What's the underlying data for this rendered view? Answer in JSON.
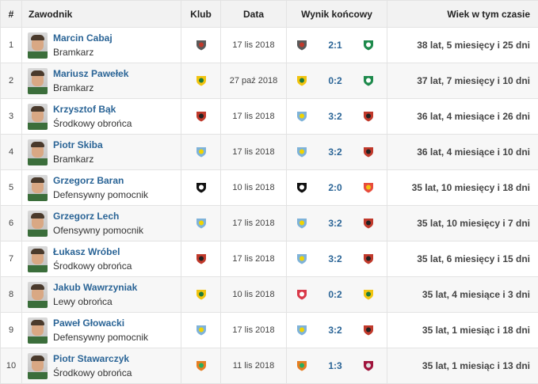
{
  "headers": {
    "num": "#",
    "player": "Zawodnik",
    "club": "Klub",
    "date": "Data",
    "result": "Wynik końcowy",
    "age": "Wiek w tym czasie"
  },
  "rows": [
    {
      "num": "1",
      "name": "Marcin Cabaj",
      "position": "Bramkarz",
      "club": "crest-triangle",
      "date": "17 lis 2018",
      "home": "crest-triangle",
      "score": "2:1",
      "away": "crest-green-circle",
      "age": "38 lat, 5 miesięcy i 25 dni"
    },
    {
      "num": "2",
      "name": "Mariusz Pawełek",
      "position": "Bramkarz",
      "club": "crest-yellow-green",
      "date": "27 paź 2018",
      "home": "crest-yellow-green",
      "score": "0:2",
      "away": "crest-green-circle",
      "age": "37 lat, 7 miesięcy i 10 dni"
    },
    {
      "num": "3",
      "name": "Krzysztof Bąk",
      "position": "Środkowy obrońca",
      "club": "crest-red-circle",
      "date": "17 lis 2018",
      "home": "crest-blue-striped",
      "score": "3:2",
      "away": "crest-red-circle",
      "age": "36 lat, 4 miesiące i 26 dni"
    },
    {
      "num": "4",
      "name": "Piotr Skiba",
      "position": "Bramkarz",
      "club": "crest-blue-striped",
      "date": "17 lis 2018",
      "home": "crest-blue-striped",
      "score": "3:2",
      "away": "crest-red-circle",
      "age": "36 lat, 4 miesiące i 10 dni"
    },
    {
      "num": "5",
      "name": "Grzegorz Baran",
      "position": "Defensywny pomocnik",
      "club": "crest-black-white",
      "date": "10 lis 2018",
      "home": "crest-black-white",
      "score": "2:0",
      "away": "crest-red-yellow",
      "age": "35 lat, 10 miesięcy i 18 dni"
    },
    {
      "num": "6",
      "name": "Grzegorz Lech",
      "position": "Ofensywny pomocnik",
      "club": "crest-blue-striped",
      "date": "17 lis 2018",
      "home": "crest-blue-striped",
      "score": "3:2",
      "away": "crest-red-circle",
      "age": "35 lat, 10 miesięcy i 7 dni"
    },
    {
      "num": "7",
      "name": "Łukasz Wróbel",
      "position": "Środkowy obrońca",
      "club": "crest-red-circle",
      "date": "17 lis 2018",
      "home": "crest-blue-striped",
      "score": "3:2",
      "away": "crest-red-circle",
      "age": "35 lat, 6 miesięcy i 15 dni"
    },
    {
      "num": "8",
      "name": "Jakub Wawrzyniak",
      "position": "Lewy obrońca",
      "club": "crest-yellow-green",
      "date": "10 lis 2018",
      "home": "crest-red-white",
      "score": "0:2",
      "away": "crest-yellow-green",
      "age": "35 lat, 4 miesiące i 3 dni"
    },
    {
      "num": "9",
      "name": "Paweł Głowacki",
      "position": "Defensywny pomocnik",
      "club": "crest-blue-striped",
      "date": "17 lis 2018",
      "home": "crest-blue-striped",
      "score": "3:2",
      "away": "crest-red-circle",
      "age": "35 lat, 1 miesiąc i 18 dni"
    },
    {
      "num": "10",
      "name": "Piotr Stawarczyk",
      "position": "Środkowy obrońca",
      "club": "crest-orange-green",
      "date": "11 lis 2018",
      "home": "crest-orange-green",
      "score": "1:3",
      "away": "crest-crimson",
      "age": "35 lat, 1 miesiąc i 13 dni"
    }
  ],
  "crest_colors": {
    "crest-triangle": [
      "#5a5a5a",
      "#c0392b"
    ],
    "crest-green-circle": [
      "#1e8a4c",
      "#ffffff"
    ],
    "crest-yellow-green": [
      "#f1c40f",
      "#1e7a3c"
    ],
    "crest-red-circle": [
      "#c0392b",
      "#222222"
    ],
    "crest-blue-striped": [
      "#7fb3d9",
      "#f1d400"
    ],
    "crest-black-white": [
      "#111111",
      "#ffffff"
    ],
    "crest-red-yellow": [
      "#e74c3c",
      "#f1c40f"
    ],
    "crest-red-white": [
      "#d93a4a",
      "#ffffff"
    ],
    "crest-orange-green": [
      "#e67e22",
      "#27ae60"
    ],
    "crest-crimson": [
      "#a0143c",
      "#e0e0e0"
    ]
  },
  "colors": {
    "link": "#2a6496",
    "header_bg": "#f2f2f2"
  }
}
